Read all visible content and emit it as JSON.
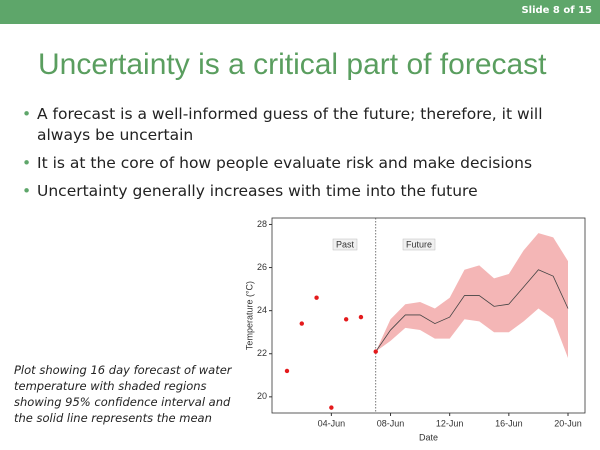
{
  "header": {
    "slide_number": "Slide 8 of 15"
  },
  "title": "Uncertainty is a critical part of forecast",
  "bullets": [
    "A forecast is a well-informed guess of the future; therefore, it will always be uncertain",
    "It is at the core of how people evaluate risk and make decisions",
    "Uncertainty generally increases with time into the future"
  ],
  "caption": "Plot showing 16 day forecast of water temperature with shaded regions showing 95% confidence interval and the solid line represents the mean",
  "chart_data": {
    "type": "forecast",
    "x_label": "Date",
    "y_label": "Temperature (°C)",
    "annotations": [
      "Past",
      "Future"
    ],
    "categories": [
      null,
      null,
      null,
      "04-Jun",
      null,
      null,
      null,
      "08-Jun",
      null,
      null,
      null,
      "12-Jun",
      null,
      null,
      null,
      "16-Jun",
      null,
      null,
      null,
      "20-Jun"
    ],
    "series": [
      {
        "color": "#e41a1c",
        "values": [
          21.2,
          23.4,
          24.6,
          19.5,
          23.6,
          23.7,
          22.1,
          null,
          null,
          null,
          null,
          null,
          null,
          null,
          null,
          null,
          null,
          null,
          null,
          null
        ]
      },
      {
        "color": "#444444",
        "values": [
          null,
          null,
          null,
          null,
          null,
          null,
          22.1,
          23.1,
          23.8,
          23.8,
          23.4,
          23.7,
          24.7,
          24.7,
          24.2,
          24.3,
          25.1,
          25.9,
          25.6,
          24.1
        ]
      },
      {
        "color": "#f4b6b6",
        "values": [
          null,
          null,
          null,
          null,
          null,
          null,
          22.1,
          23.6,
          24.3,
          24.4,
          24.1,
          24.6,
          25.9,
          26.1,
          25.5,
          25.7,
          26.8,
          27.6,
          27.4,
          26.3
        ]
      },
      {
        "color": "#f4b6b6",
        "values": [
          null,
          null,
          null,
          null,
          null,
          null,
          22.1,
          22.6,
          23.2,
          23.1,
          22.7,
          22.7,
          23.6,
          23.5,
          23.0,
          23.0,
          23.5,
          24.1,
          23.6,
          21.8
        ]
      }
    ],
    "ylim": [
      19.25,
      28.3
    ],
    "yticks": [
      20,
      22,
      24,
      26,
      28
    ]
  }
}
